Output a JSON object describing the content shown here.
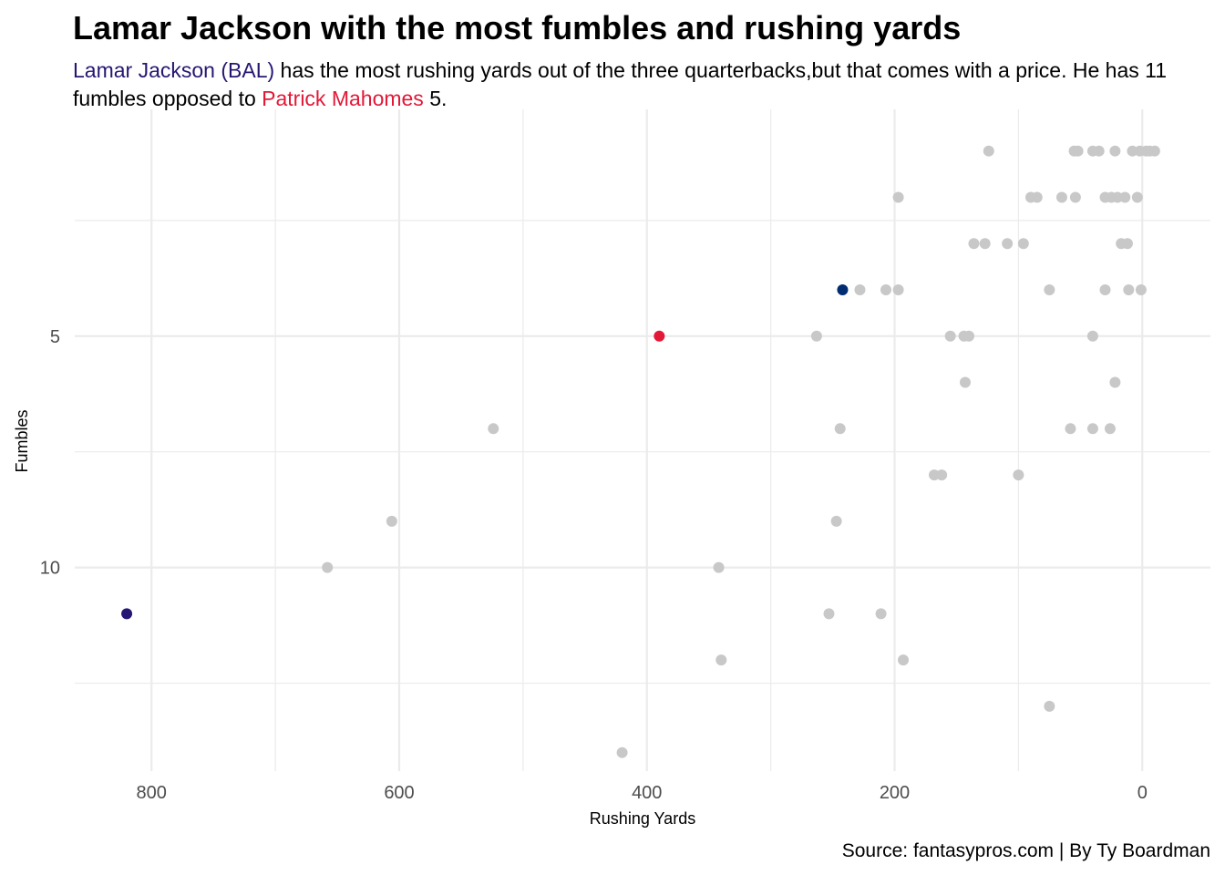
{
  "chart_data": {
    "type": "scatter",
    "title": "Lamar Jackson with the most fumbles and rushing yards",
    "subtitle": {
      "highlight_1": "Lamar Jackson (BAL)",
      "text_1": " has the most rushing yards out of the three quarterbacks,but that comes with a price. He has 11 fumbles opposed to ",
      "highlight_2": "Patrick Mahomes",
      "text_2": " 5."
    },
    "xlabel": "Rushing Yards",
    "ylabel": "Fumbles",
    "caption": "Source: fantasypros.com | By Ty Boardman",
    "x_reversed": true,
    "y_reversed": true,
    "xlim": [
      -55,
      862
    ],
    "ylim": [
      0.1,
      14.4
    ],
    "x_ticks": [
      800,
      600,
      400,
      200,
      0
    ],
    "x_tick_labels": [
      "800",
      "600",
      "400",
      "200",
      "0"
    ],
    "y_ticks": [
      5,
      10
    ],
    "y_tick_labels": [
      "5",
      "10"
    ],
    "grid": true,
    "colors": {
      "others": "#c8c8c8",
      "lamar_jackson": "#241773",
      "patrick_mahomes": "#E31837",
      "highlight_3": "#002D72",
      "grid": "#ebebeb"
    },
    "highlighted": [
      {
        "x": 820,
        "y": 11,
        "color_key": "lamar_jackson"
      },
      {
        "x": 390,
        "y": 5,
        "color_key": "patrick_mahomes"
      },
      {
        "x": 242,
        "y": 4,
        "color_key": "highlight_3"
      }
    ],
    "points": [
      {
        "x": 124,
        "y": 1
      },
      {
        "x": 55,
        "y": 1
      },
      {
        "x": 52,
        "y": 1
      },
      {
        "x": 40,
        "y": 1
      },
      {
        "x": 35,
        "y": 1
      },
      {
        "x": 22,
        "y": 1
      },
      {
        "x": 8,
        "y": 1
      },
      {
        "x": 2,
        "y": 1
      },
      {
        "x": -3,
        "y": 1
      },
      {
        "x": -6,
        "y": 1
      },
      {
        "x": -10,
        "y": 1
      },
      {
        "x": 197,
        "y": 2
      },
      {
        "x": 90,
        "y": 2
      },
      {
        "x": 85,
        "y": 2
      },
      {
        "x": 65,
        "y": 2
      },
      {
        "x": 54,
        "y": 2
      },
      {
        "x": 30,
        "y": 2
      },
      {
        "x": 25,
        "y": 2
      },
      {
        "x": 20,
        "y": 2
      },
      {
        "x": 14,
        "y": 2
      },
      {
        "x": 4,
        "y": 2
      },
      {
        "x": 136,
        "y": 3
      },
      {
        "x": 127,
        "y": 3
      },
      {
        "x": 109,
        "y": 3
      },
      {
        "x": 96,
        "y": 3
      },
      {
        "x": 17,
        "y": 3
      },
      {
        "x": 12,
        "y": 3
      },
      {
        "x": 228,
        "y": 4
      },
      {
        "x": 207,
        "y": 4
      },
      {
        "x": 197,
        "y": 4
      },
      {
        "x": 75,
        "y": 4
      },
      {
        "x": 30,
        "y": 4
      },
      {
        "x": 11,
        "y": 4
      },
      {
        "x": 1,
        "y": 4
      },
      {
        "x": 263,
        "y": 5
      },
      {
        "x": 155,
        "y": 5
      },
      {
        "x": 144,
        "y": 5
      },
      {
        "x": 140,
        "y": 5
      },
      {
        "x": 40,
        "y": 5
      },
      {
        "x": 143,
        "y": 6
      },
      {
        "x": 22,
        "y": 6
      },
      {
        "x": 524,
        "y": 7
      },
      {
        "x": 244,
        "y": 7
      },
      {
        "x": 58,
        "y": 7
      },
      {
        "x": 40,
        "y": 7
      },
      {
        "x": 26,
        "y": 7
      },
      {
        "x": 168,
        "y": 8
      },
      {
        "x": 162,
        "y": 8
      },
      {
        "x": 100,
        "y": 8
      },
      {
        "x": 606,
        "y": 9
      },
      {
        "x": 247,
        "y": 9
      },
      {
        "x": 658,
        "y": 10
      },
      {
        "x": 342,
        "y": 10
      },
      {
        "x": 253,
        "y": 11
      },
      {
        "x": 211,
        "y": 11
      },
      {
        "x": 340,
        "y": 12
      },
      {
        "x": 193,
        "y": 12
      },
      {
        "x": 75,
        "y": 13
      },
      {
        "x": 420,
        "y": 14
      }
    ]
  }
}
